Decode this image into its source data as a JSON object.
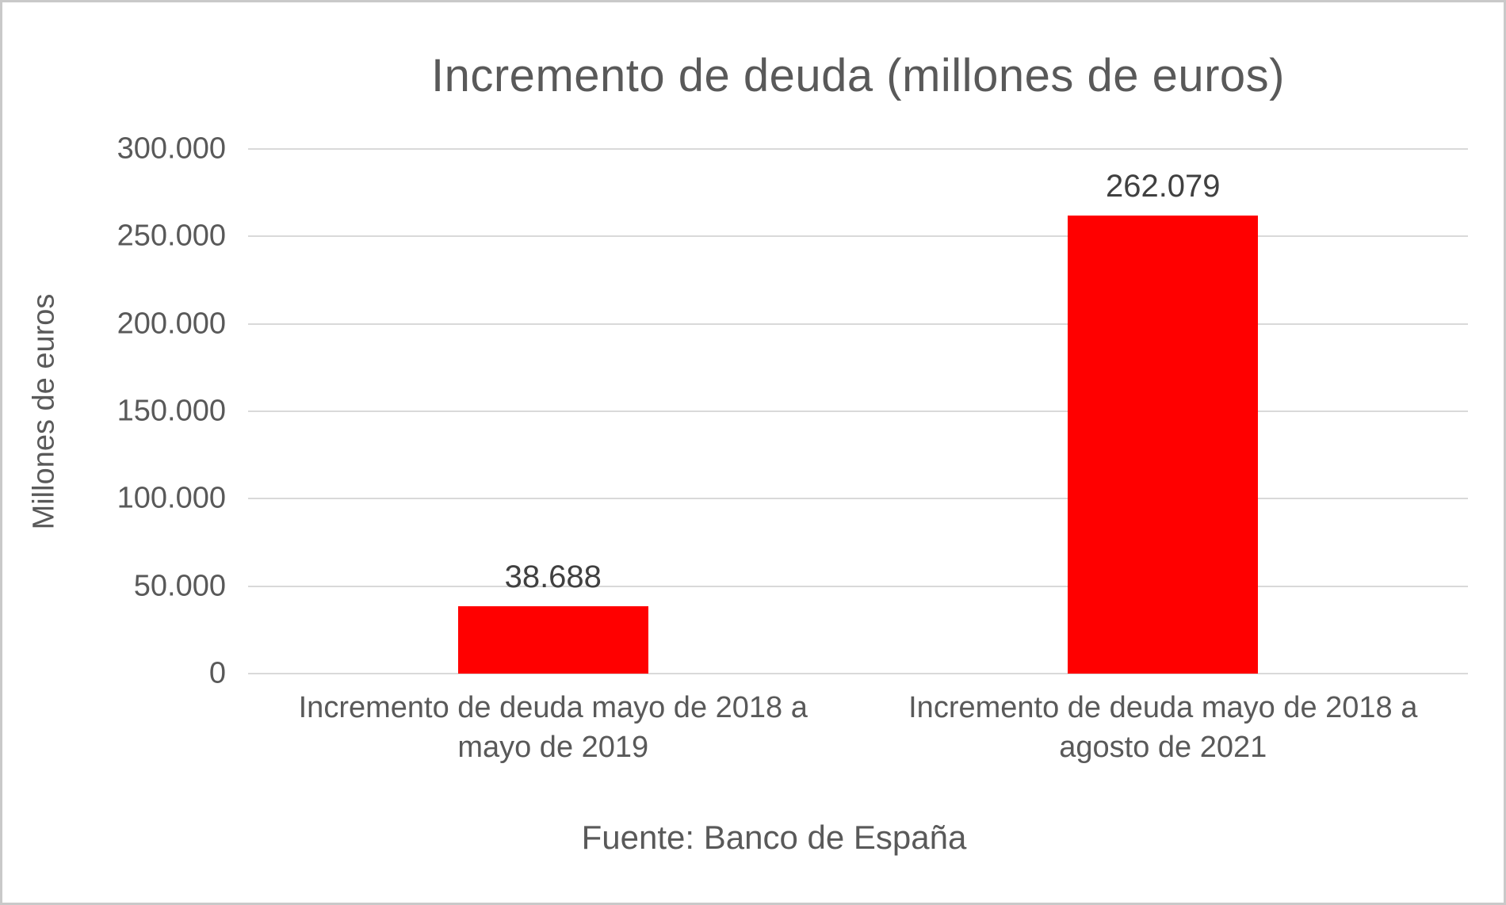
{
  "chart_data": {
    "type": "bar",
    "title": "Incremento de deuda (millones de euros)",
    "ylabel": "Millones de euros",
    "xlabel": "",
    "source": "Fuente: Banco de España",
    "ylim": [
      0,
      300000
    ],
    "grid": true,
    "legend": false,
    "bar_color": "#ff0000",
    "gridline_color": "#d9d9d9",
    "text_color": "#595959",
    "data_label_color": "#404040",
    "categories": [
      "Incremento de deuda mayo de 2018 a mayo de 2019",
      "Incremento de deuda mayo de 2018 a agosto de 2021"
    ],
    "category_label_lines": [
      [
        "Incremento de deuda mayo de 2018 a",
        "mayo de 2019"
      ],
      [
        "Incremento de deuda mayo de 2018 a",
        "agosto de 2021"
      ]
    ],
    "values": [
      38688,
      262079
    ],
    "value_labels": [
      "38.688",
      "262.079"
    ],
    "yticks": [
      {
        "value": 0,
        "label": "0"
      },
      {
        "value": 50000,
        "label": "50.000"
      },
      {
        "value": 100000,
        "label": "100.000"
      },
      {
        "value": 150000,
        "label": "150.000"
      },
      {
        "value": 200000,
        "label": "200.000"
      },
      {
        "value": 250000,
        "label": "250.000"
      },
      {
        "value": 300000,
        "label": "300.000"
      }
    ]
  }
}
